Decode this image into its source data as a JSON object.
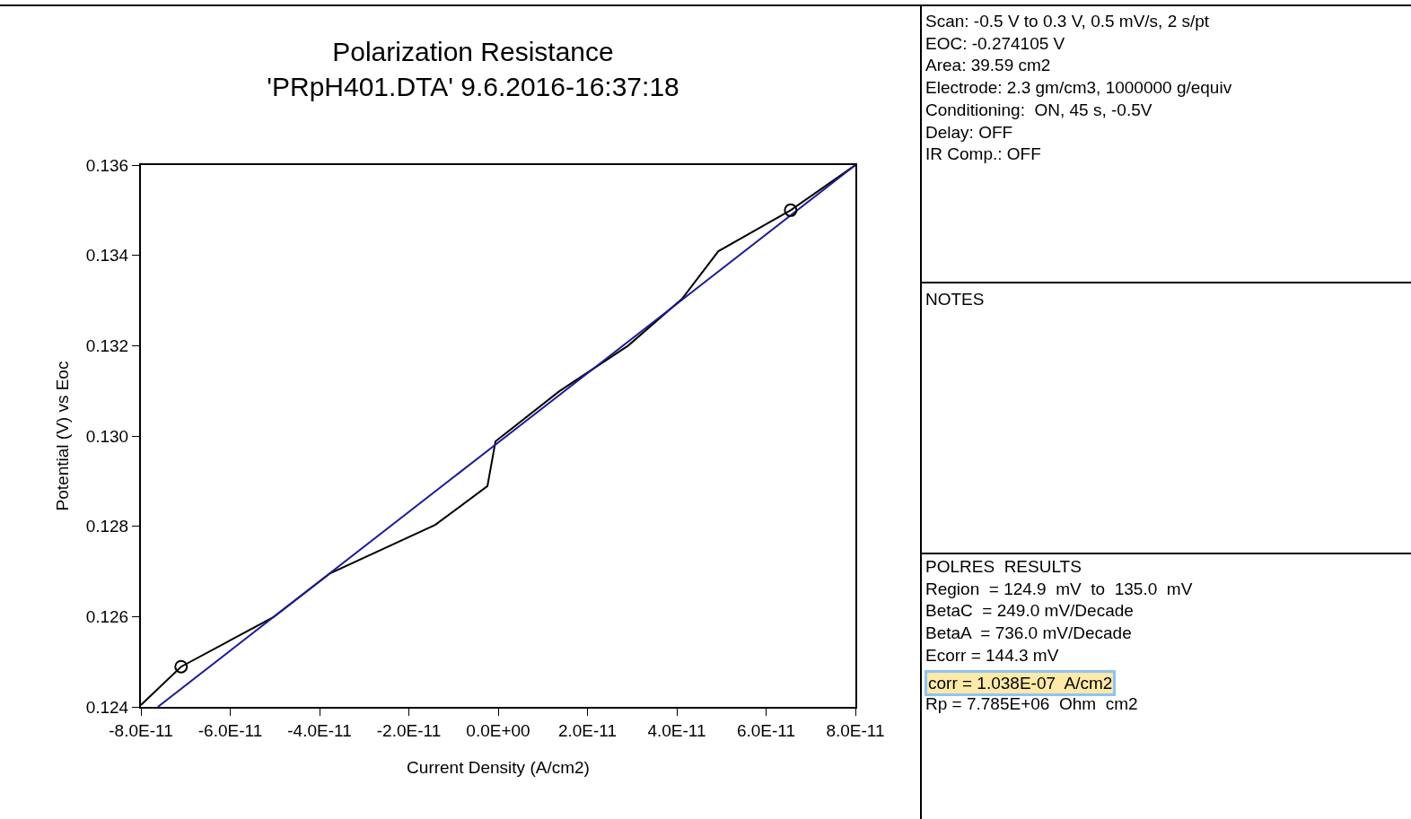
{
  "chart_data": {
    "type": "line",
    "title": "Polarization Resistance\n'PRpH401.DTA' 9.6.2016-16:37:18",
    "xlabel": "Current Density (A/cm2)",
    "ylabel": "Potential (V) vs Eoc",
    "xlim": [
      -8e-11,
      8e-11
    ],
    "ylim": [
      0.124,
      0.136
    ],
    "xticks": [
      {
        "value": -8e-11,
        "label": "-8.0E-11"
      },
      {
        "value": -6e-11,
        "label": "-6.0E-11"
      },
      {
        "value": -4e-11,
        "label": "-4.0E-11"
      },
      {
        "value": -2e-11,
        "label": "-2.0E-11"
      },
      {
        "value": 0,
        "label": "0.0E+00"
      },
      {
        "value": 2e-11,
        "label": "2.0E-11"
      },
      {
        "value": 4e-11,
        "label": "4.0E-11"
      },
      {
        "value": 6e-11,
        "label": "6.0E-11"
      },
      {
        "value": 8e-11,
        "label": "8.0E-11"
      }
    ],
    "yticks": [
      {
        "value": 0.124,
        "label": "0.124"
      },
      {
        "value": 0.126,
        "label": "0.126"
      },
      {
        "value": 0.128,
        "label": "0.128"
      },
      {
        "value": 0.13,
        "label": "0.130"
      },
      {
        "value": 0.132,
        "label": "0.132"
      },
      {
        "value": 0.134,
        "label": "0.134"
      },
      {
        "value": 0.136,
        "label": "0.136"
      }
    ],
    "series": [
      {
        "color": "#000000",
        "marker": "none",
        "line_style": "solid",
        "x": [
          -8e-11,
          -7.1e-11,
          -5.03e-11,
          -3.76e-11,
          -1.41e-11,
          -2.4e-12,
          -6e-13,
          1.37e-11,
          2.91e-11,
          4.12e-11,
          4.93e-11,
          6.55e-11,
          8e-11
        ],
        "values": [
          0.12404,
          0.12489,
          0.12599,
          0.12696,
          0.12803,
          0.12889,
          0.12988,
          0.13099,
          0.132,
          0.13304,
          0.13409,
          0.135,
          0.136
        ]
      },
      {
        "color": "#1c1c96",
        "marker": "none",
        "line_style": "solid",
        "x": [
          -7.62e-11,
          8e-11
        ],
        "values": [
          0.124,
          0.136
        ]
      },
      {
        "type": "scatter",
        "color": "#000000",
        "marker": "circle",
        "x": [
          -7.1e-11,
          6.55e-11
        ],
        "values": [
          0.12489,
          0.135
        ]
      }
    ],
    "annotations": [
      "Scan: -0.5 V to 0.3 V, 0.5 mV/s, 2 s/pt\nEOC: -0.274105 V\nArea: 39.59 cm2\nElectrode: 2.3 gm/cm3, 1000000 g/equiv\nConditioning:  ON, 45 s, -0.5V\nDelay: OFF\nIR Comp.: OFF",
      "NOTES",
      "POLRES  RESULTS\nRegion  = 124.9  mV  to  135.0  mV\nBetaC  = 249.0 mV/Decade\nBetaA  = 736.0 mV/Decade\nEcorr = 144.3 mV",
      "corr = 1.038E-07  A/cm2",
      "Rp = 7.785E+06  Ohm  cm2"
    ]
  }
}
